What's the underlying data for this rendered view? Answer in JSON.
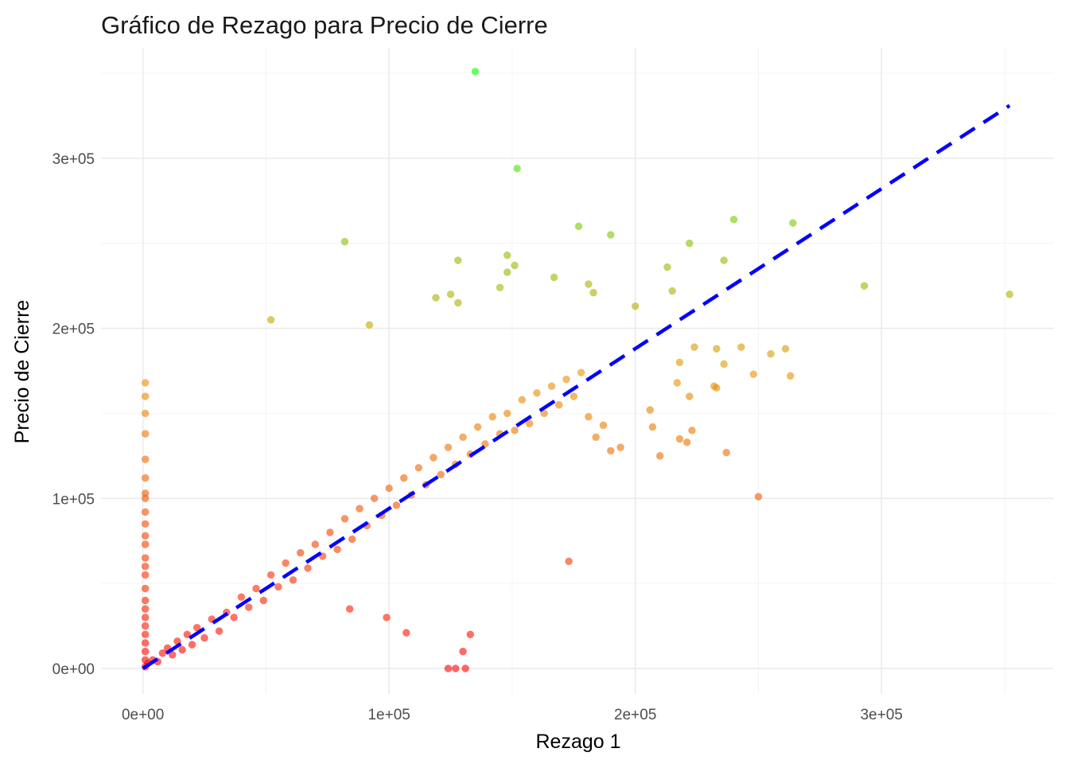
{
  "chart_data": {
    "type": "scatter",
    "title": "Gráfico de Rezago para Precio de Cierre",
    "xlabel": "Rezago 1",
    "ylabel": "Precio de Cierre",
    "xlim": [
      -17000,
      370000
    ],
    "ylim": [
      -15000,
      365000
    ],
    "x_ticks": [
      0,
      100000,
      200000,
      300000
    ],
    "x_tick_labels": [
      "0e+00",
      "1e+05",
      "2e+05",
      "3e+05"
    ],
    "y_ticks": [
      0,
      100000,
      200000,
      300000
    ],
    "y_tick_labels": [
      "0e+00",
      "1e+05",
      "2e+05",
      "3e+05"
    ],
    "grid": true,
    "color_scale": {
      "low": "#ff0000",
      "mid": "#e69500",
      "high": "#00ff00",
      "domain": [
        0,
        350000
      ]
    },
    "point_opacity": 0.6,
    "trend_line": {
      "style": "dashed",
      "color": "#0000ff",
      "x": [
        0,
        352000
      ],
      "y": [
        0,
        331000
      ]
    },
    "series": [
      {
        "name": "",
        "points": [
          [
            135000,
            351000
          ],
          [
            152000,
            294000
          ],
          [
            82000,
            251000
          ],
          [
            52000,
            205000
          ],
          [
            92000,
            202000
          ],
          [
            177000,
            260000
          ],
          [
            190000,
            255000
          ],
          [
            240000,
            264000
          ],
          [
            264000,
            262000
          ],
          [
            222000,
            250000
          ],
          [
            236000,
            240000
          ],
          [
            213000,
            236000
          ],
          [
            128000,
            240000
          ],
          [
            148000,
            243000
          ],
          [
            151000,
            237000
          ],
          [
            148000,
            233000
          ],
          [
            167000,
            230000
          ],
          [
            125000,
            220000
          ],
          [
            128000,
            215000
          ],
          [
            119000,
            218000
          ],
          [
            145000,
            224000
          ],
          [
            181000,
            226000
          ],
          [
            183000,
            221000
          ],
          [
            293000,
            225000
          ],
          [
            352000,
            220000
          ],
          [
            215000,
            222000
          ],
          [
            200000,
            213000
          ],
          [
            250000,
            101000
          ],
          [
            237000,
            127000
          ],
          [
            263000,
            172000
          ],
          [
            255000,
            185000
          ],
          [
            261000,
            188000
          ],
          [
            243000,
            189000
          ],
          [
            248000,
            173000
          ],
          [
            233000,
            165000
          ],
          [
            224000,
            189000
          ],
          [
            233000,
            188000
          ],
          [
            222000,
            160000
          ],
          [
            232000,
            166000
          ],
          [
            236000,
            179000
          ],
          [
            218000,
            180000
          ],
          [
            217000,
            168000
          ],
          [
            221000,
            133000
          ],
          [
            223000,
            140000
          ],
          [
            218000,
            135000
          ],
          [
            210000,
            125000
          ],
          [
            207000,
            142000
          ],
          [
            206000,
            152000
          ],
          [
            173000,
            63000
          ],
          [
            130000,
            10000
          ],
          [
            133000,
            20000
          ],
          [
            124000,
            0
          ],
          [
            127000,
            0
          ],
          [
            131000,
            0
          ],
          [
            107000,
            21000
          ],
          [
            84000,
            35000
          ],
          [
            99000,
            30000
          ],
          [
            1000,
            168000
          ],
          [
            1000,
            160000
          ],
          [
            1000,
            150000
          ],
          [
            1000,
            138000
          ],
          [
            1000,
            123000
          ],
          [
            1000,
            112000
          ],
          [
            1000,
            103000
          ],
          [
            1000,
            100000
          ],
          [
            1000,
            92000
          ],
          [
            1000,
            85000
          ],
          [
            1000,
            78000
          ],
          [
            1000,
            73000
          ],
          [
            1000,
            65000
          ],
          [
            1000,
            60000
          ],
          [
            1000,
            55000
          ],
          [
            1000,
            47000
          ],
          [
            1000,
            40000
          ],
          [
            1000,
            35000
          ],
          [
            1000,
            30000
          ],
          [
            1000,
            25000
          ],
          [
            1000,
            20000
          ],
          [
            1000,
            15000
          ],
          [
            1000,
            10000
          ],
          [
            1000,
            5000
          ],
          [
            1000,
            1000
          ],
          [
            2000,
            3000
          ],
          [
            4000,
            5000
          ],
          [
            6000,
            4000
          ],
          [
            8000,
            9000
          ],
          [
            10000,
            12000
          ],
          [
            12000,
            8000
          ],
          [
            14000,
            16000
          ],
          [
            16000,
            11000
          ],
          [
            18000,
            20000
          ],
          [
            20000,
            14000
          ],
          [
            22000,
            24000
          ],
          [
            25000,
            18000
          ],
          [
            28000,
            29000
          ],
          [
            31000,
            22000
          ],
          [
            34000,
            33000
          ],
          [
            37000,
            30000
          ],
          [
            40000,
            42000
          ],
          [
            43000,
            36000
          ],
          [
            46000,
            47000
          ],
          [
            49000,
            40000
          ],
          [
            52000,
            55000
          ],
          [
            55000,
            48000
          ],
          [
            58000,
            62000
          ],
          [
            61000,
            52000
          ],
          [
            64000,
            68000
          ],
          [
            67000,
            59000
          ],
          [
            70000,
            73000
          ],
          [
            73000,
            66000
          ],
          [
            76000,
            80000
          ],
          [
            79000,
            70000
          ],
          [
            82000,
            88000
          ],
          [
            85000,
            76000
          ],
          [
            88000,
            94000
          ],
          [
            91000,
            84000
          ],
          [
            94000,
            100000
          ],
          [
            97000,
            90000
          ],
          [
            100000,
            106000
          ],
          [
            103000,
            96000
          ],
          [
            106000,
            112000
          ],
          [
            109000,
            102000
          ],
          [
            112000,
            118000
          ],
          [
            115000,
            108000
          ],
          [
            118000,
            124000
          ],
          [
            121000,
            114000
          ],
          [
            124000,
            130000
          ],
          [
            127000,
            120000
          ],
          [
            130000,
            136000
          ],
          [
            133000,
            126000
          ],
          [
            136000,
            142000
          ],
          [
            139000,
            132000
          ],
          [
            142000,
            148000
          ],
          [
            145000,
            138000
          ],
          [
            148000,
            150000
          ],
          [
            151000,
            140000
          ],
          [
            154000,
            158000
          ],
          [
            157000,
            144000
          ],
          [
            160000,
            162000
          ],
          [
            163000,
            150000
          ],
          [
            166000,
            166000
          ],
          [
            169000,
            155000
          ],
          [
            172000,
            170000
          ],
          [
            175000,
            160000
          ],
          [
            178000,
            174000
          ],
          [
            181000,
            148000
          ],
          [
            184000,
            136000
          ],
          [
            187000,
            143000
          ],
          [
            190000,
            128000
          ],
          [
            194000,
            130000
          ]
        ]
      }
    ]
  }
}
